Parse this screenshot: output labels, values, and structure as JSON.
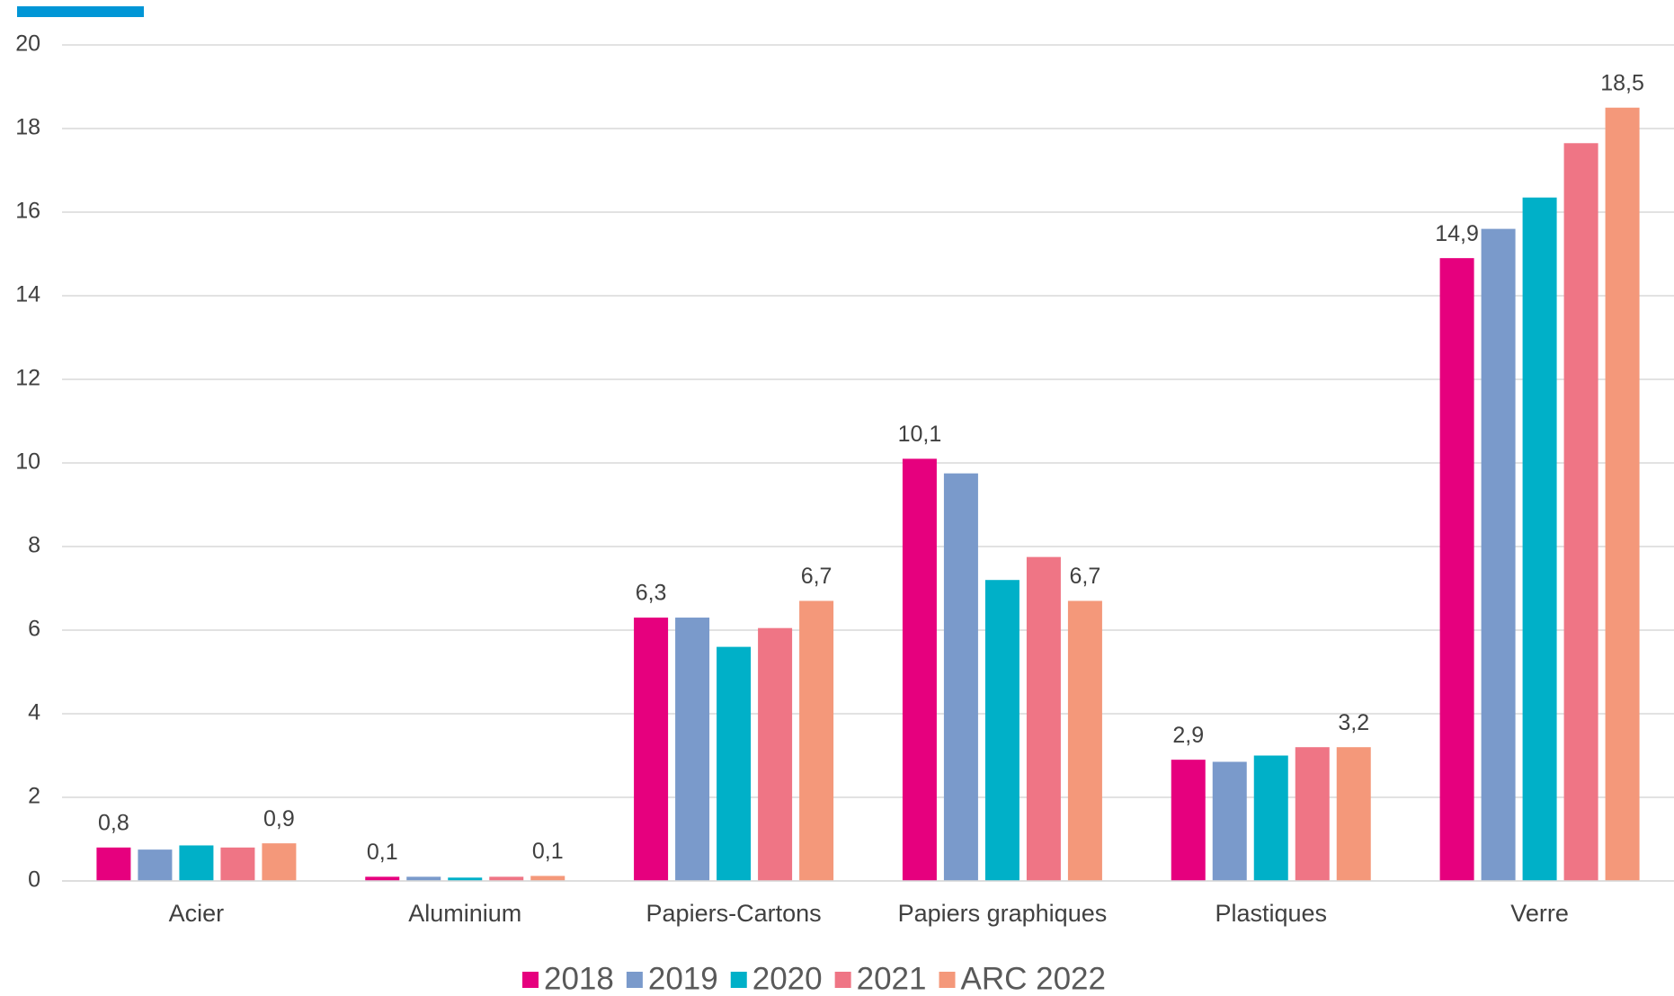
{
  "chart_data": {
    "type": "bar",
    "categories": [
      "Acier",
      "Aluminium",
      "Papiers-Cartons",
      "Papiers graphiques",
      "Plastiques",
      "Verre"
    ],
    "series": [
      {
        "name": "2018",
        "color": "#e6007e",
        "values": [
          0.8,
          0.1,
          6.3,
          10.1,
          2.9,
          14.9
        ],
        "value_labels": [
          "0,8",
          "0,1",
          "6,3",
          "10,1",
          "2,9",
          "14,9"
        ]
      },
      {
        "name": "2019",
        "color": "#7a9acb",
        "values": [
          0.75,
          0.1,
          6.3,
          9.75,
          2.85,
          15.6
        ]
      },
      {
        "name": "2020",
        "color": "#00b0c8",
        "values": [
          0.85,
          0.08,
          5.6,
          7.2,
          3.0,
          16.35
        ]
      },
      {
        "name": "2021",
        "color": "#ef7585",
        "values": [
          0.8,
          0.1,
          6.05,
          7.75,
          3.2,
          17.65
        ]
      },
      {
        "name": "ARC 2022",
        "color": "#f4987a",
        "values": [
          0.9,
          0.12,
          6.7,
          6.7,
          3.2,
          18.5
        ],
        "value_labels": [
          "0,9",
          "0,1",
          "6,7",
          "6,7",
          "3,2",
          "18,5"
        ]
      }
    ],
    "ylim": [
      0,
      20
    ],
    "yticks": [
      0,
      2,
      4,
      6,
      8,
      10,
      12,
      14,
      16,
      18,
      20
    ],
    "grid": true,
    "legend": "bottom"
  }
}
